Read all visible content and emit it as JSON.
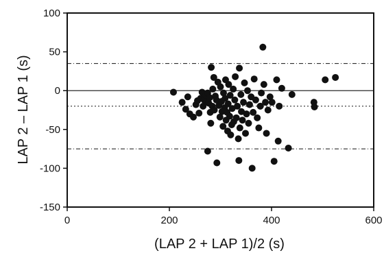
{
  "chart_data": {
    "type": "scatter",
    "title": "",
    "xlabel": "(LAP 2 + LAP 1)/2 (s)",
    "ylabel": "LAP 2 – LAP 1 (s)",
    "xlim": [
      0,
      600
    ],
    "ylim": [
      -150,
      100
    ],
    "xticks": [
      0,
      200,
      400,
      600
    ],
    "yticks": [
      -150,
      -100,
      -50,
      0,
      50,
      100
    ],
    "xtick_labels": [
      "0",
      "200",
      "400",
      "600"
    ],
    "ytick_labels": [
      "-150",
      "-100",
      "-50",
      "0",
      "50",
      "100"
    ],
    "grid": false,
    "reference_lines": [
      {
        "y": 0,
        "style": "solid"
      },
      {
        "y": 35,
        "style": "dash-dot"
      },
      {
        "y": -20,
        "style": "dotted"
      },
      {
        "y": -75,
        "style": "dash-dot"
      }
    ],
    "points": [
      {
        "x": 208,
        "y": -2
      },
      {
        "x": 225,
        "y": -15
      },
      {
        "x": 232,
        "y": -24
      },
      {
        "x": 236,
        "y": -8
      },
      {
        "x": 240,
        "y": -30
      },
      {
        "x": 247,
        "y": -34
      },
      {
        "x": 252,
        "y": -18
      },
      {
        "x": 255,
        "y": -13
      },
      {
        "x": 258,
        "y": -29
      },
      {
        "x": 261,
        "y": -10
      },
      {
        "x": 264,
        "y": -2
      },
      {
        "x": 266,
        "y": -20
      },
      {
        "x": 268,
        "y": -12
      },
      {
        "x": 271,
        "y": -6
      },
      {
        "x": 273,
        "y": -14
      },
      {
        "x": 275,
        "y": -3
      },
      {
        "x": 275,
        "y": -78
      },
      {
        "x": 277,
        "y": -16
      },
      {
        "x": 279,
        "y": -9
      },
      {
        "x": 280,
        "y": -28
      },
      {
        "x": 281,
        "y": -42
      },
      {
        "x": 282,
        "y": 30
      },
      {
        "x": 284,
        "y": -20
      },
      {
        "x": 285,
        "y": 2
      },
      {
        "x": 287,
        "y": 17
      },
      {
        "x": 288,
        "y": -25
      },
      {
        "x": 290,
        "y": -7
      },
      {
        "x": 292,
        "y": -12
      },
      {
        "x": 293,
        "y": -93
      },
      {
        "x": 295,
        "y": 11
      },
      {
        "x": 297,
        "y": -19
      },
      {
        "x": 299,
        "y": -34
      },
      {
        "x": 300,
        "y": 5
      },
      {
        "x": 302,
        "y": -14
      },
      {
        "x": 303,
        "y": -27
      },
      {
        "x": 305,
        "y": -46
      },
      {
        "x": 306,
        "y": -3
      },
      {
        "x": 308,
        "y": -22
      },
      {
        "x": 309,
        "y": -10
      },
      {
        "x": 310,
        "y": 14
      },
      {
        "x": 311,
        "y": -38
      },
      {
        "x": 313,
        "y": -28
      },
      {
        "x": 314,
        "y": -52
      },
      {
        "x": 315,
        "y": -17
      },
      {
        "x": 316,
        "y": 8
      },
      {
        "x": 318,
        "y": -33
      },
      {
        "x": 319,
        "y": -6
      },
      {
        "x": 320,
        "y": -57
      },
      {
        "x": 322,
        "y": -44
      },
      {
        "x": 323,
        "y": -23
      },
      {
        "x": 325,
        "y": 2
      },
      {
        "x": 326,
        "y": -40
      },
      {
        "x": 328,
        "y": -12
      },
      {
        "x": 329,
        "y": 18
      },
      {
        "x": 331,
        "y": -35
      },
      {
        "x": 333,
        "y": -20
      },
      {
        "x": 335,
        "y": -62
      },
      {
        "x": 336,
        "y": -90
      },
      {
        "x": 337,
        "y": 29
      },
      {
        "x": 338,
        "y": -48
      },
      {
        "x": 340,
        "y": -5
      },
      {
        "x": 341,
        "y": -27
      },
      {
        "x": 343,
        "y": -38
      },
      {
        "x": 345,
        "y": -15
      },
      {
        "x": 347,
        "y": 10
      },
      {
        "x": 349,
        "y": -55
      },
      {
        "x": 351,
        "y": -30
      },
      {
        "x": 353,
        "y": 0
      },
      {
        "x": 355,
        "y": -42
      },
      {
        "x": 357,
        "y": -18
      },
      {
        "x": 360,
        "y": -8
      },
      {
        "x": 362,
        "y": -100
      },
      {
        "x": 364,
        "y": -28
      },
      {
        "x": 366,
        "y": 15
      },
      {
        "x": 369,
        "y": -12
      },
      {
        "x": 372,
        "y": -35
      },
      {
        "x": 375,
        "y": -48
      },
      {
        "x": 378,
        "y": -20
      },
      {
        "x": 380,
        "y": -3
      },
      {
        "x": 383,
        "y": 56
      },
      {
        "x": 385,
        "y": 8
      },
      {
        "x": 388,
        "y": -15
      },
      {
        "x": 390,
        "y": -55
      },
      {
        "x": 393,
        "y": -25
      },
      {
        "x": 397,
        "y": -8
      },
      {
        "x": 401,
        "y": -15
      },
      {
        "x": 405,
        "y": -91
      },
      {
        "x": 410,
        "y": 14
      },
      {
        "x": 413,
        "y": -65
      },
      {
        "x": 415,
        "y": -20
      },
      {
        "x": 420,
        "y": 3
      },
      {
        "x": 433,
        "y": -74
      },
      {
        "x": 440,
        "y": -5
      },
      {
        "x": 483,
        "y": -15
      },
      {
        "x": 484,
        "y": -21
      },
      {
        "x": 505,
        "y": 14
      },
      {
        "x": 525,
        "y": 17
      }
    ]
  }
}
